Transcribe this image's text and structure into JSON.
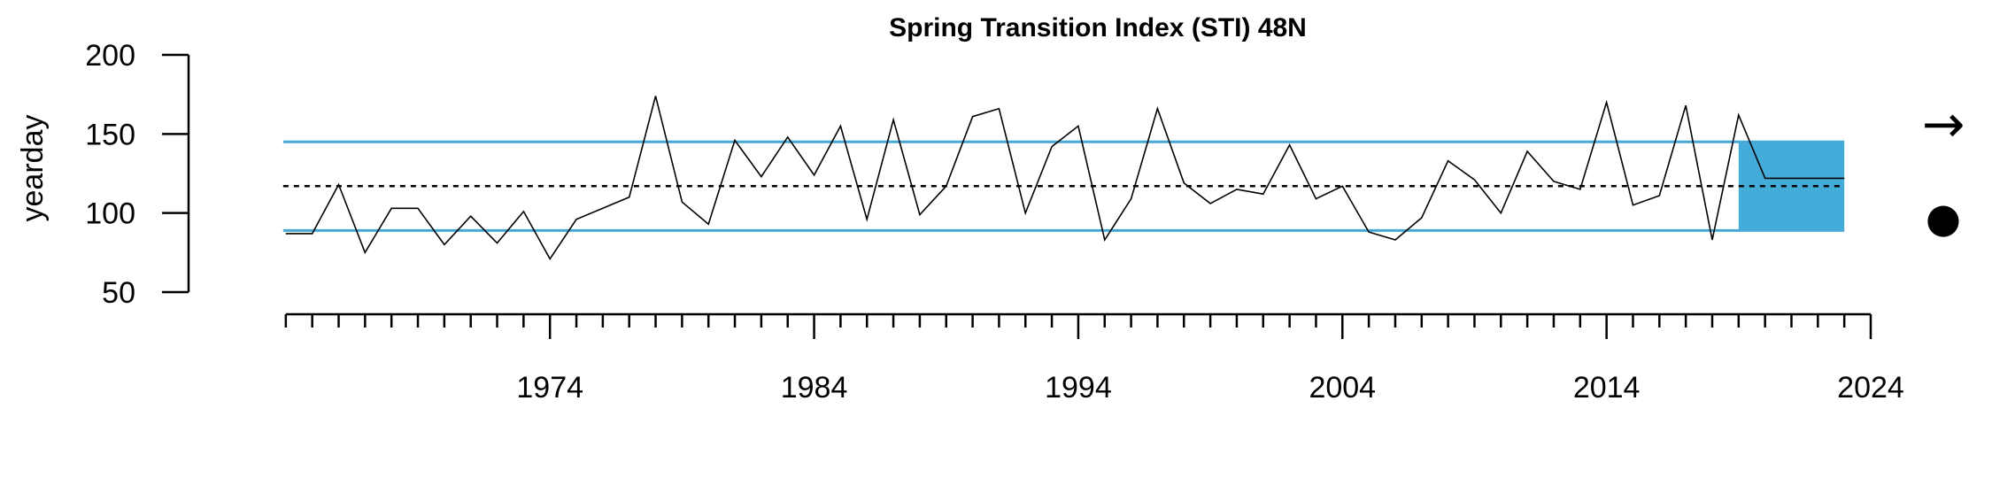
{
  "chart_data": {
    "type": "line",
    "title": "Spring Transition Index (STI) 48N",
    "xlabel": "",
    "ylabel": "yearday",
    "xlim": [
      1963,
      2024
    ],
    "ylim": [
      50,
      200
    ],
    "x_tick_labels": [
      1974,
      1984,
      1994,
      2004,
      2014,
      2024
    ],
    "y_tick_labels": [
      50,
      100,
      150,
      200
    ],
    "grid": false,
    "series": [
      {
        "x": [
          1964,
          1965,
          1966,
          1967,
          1968,
          1969,
          1970,
          1971,
          1972,
          1973,
          1974,
          1975,
          1976,
          1977,
          1978,
          1979,
          1980,
          1981,
          1982,
          1983,
          1984,
          1985,
          1986,
          1987,
          1988,
          1989,
          1990,
          1991,
          1992,
          1993,
          1994,
          1995,
          1996,
          1997,
          1998,
          1999,
          2000,
          2001,
          2002,
          2003,
          2004,
          2005,
          2006,
          2007,
          2008,
          2009,
          2010,
          2011,
          2012,
          2013,
          2014,
          2015,
          2016,
          2017,
          2018,
          2019,
          2020,
          2021,
          2022,
          2023
        ],
        "values": [
          87,
          87,
          118,
          75,
          103,
          103,
          80,
          98,
          81,
          101,
          71,
          96,
          103,
          110,
          174,
          107,
          93,
          146,
          123,
          148,
          124,
          155,
          96,
          159,
          99,
          117,
          161,
          166,
          100,
          142,
          155,
          83,
          109,
          166,
          119,
          106,
          115,
          112,
          143,
          109,
          117,
          88,
          83,
          97,
          133,
          121,
          100,
          139,
          120,
          115,
          170,
          105,
          111,
          168,
          83,
          162,
          122,
          122,
          122,
          122
        ]
      }
    ],
    "reference_lines": {
      "mean": 117,
      "upper_sd": 145,
      "lower_sd": 89
    },
    "recent_period": {
      "x_start": 2019,
      "x_end": 2023,
      "y_low": 89,
      "y_high": 145
    },
    "trend_symbols": {
      "trend": "→",
      "mean_marker": "●"
    },
    "colors": {
      "series": "#000000",
      "sd_lines": "#47a9d3",
      "recent_fill": "#44acd8",
      "mean_line": "#000000"
    }
  }
}
